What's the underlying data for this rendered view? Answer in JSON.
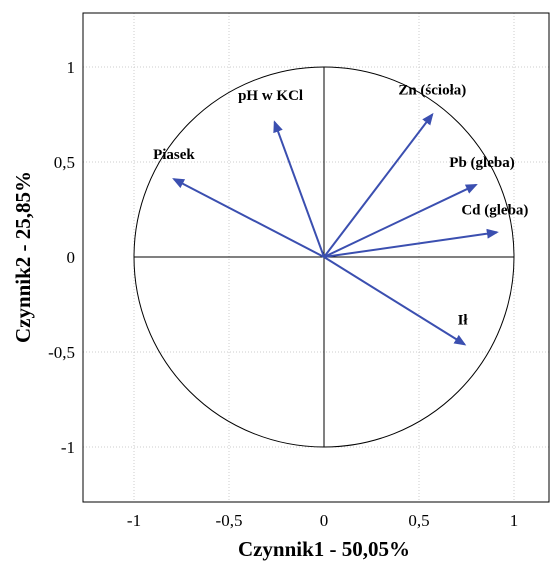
{
  "chart_data": {
    "type": "scatter",
    "subtype": "correlation-circle-biplot",
    "xlabel": "Czynnik1 - 50,05%",
    "ylabel": "Czynnik2 - 25,85%",
    "xlim": [
      -1.25,
      1.25
    ],
    "ylim": [
      -1.25,
      1.25
    ],
    "x_ticks": [
      -1,
      -0.5,
      0,
      0.5,
      1
    ],
    "x_tick_labels": [
      "-1",
      "-0,5",
      "0",
      "0,5",
      "1"
    ],
    "y_ticks": [
      1,
      0.5,
      0,
      -0.5,
      -1
    ],
    "y_tick_labels": [
      "1",
      "0,5",
      "0",
      "-0,5",
      "-1"
    ],
    "grid": true,
    "unit_circle": true,
    "colors": {
      "vector": "#3b4fb0",
      "circle": "#000000",
      "grid": "#cccccc"
    },
    "vectors": [
      {
        "name": "pH w KCl",
        "x": -0.26,
        "y": 0.71
      },
      {
        "name": "Zn (ściołа)",
        "x": 0.57,
        "y": 0.75
      },
      {
        "name": "Piasek",
        "x": -0.79,
        "y": 0.41
      },
      {
        "name": "Pb (gleba)",
        "x": 0.8,
        "y": 0.38
      },
      {
        "name": "Cd (gleba)",
        "x": 0.91,
        "y": 0.13
      },
      {
        "name": "Ił",
        "x": 0.74,
        "y": -0.46
      }
    ]
  }
}
